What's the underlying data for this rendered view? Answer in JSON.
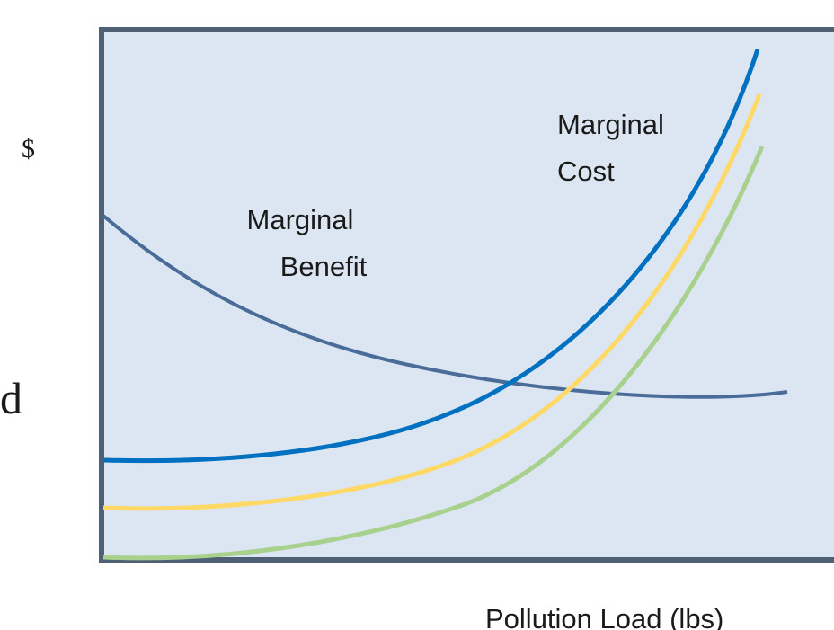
{
  "y_axis_label": "$",
  "left_fragment": "d",
  "curve_labels": {
    "marginal_benefit": [
      "Marginal",
      "Benefit"
    ],
    "marginal_cost": [
      "Marginal",
      "Cost"
    ]
  },
  "x_axis_label": "Pollution Load (lbs)"
}
